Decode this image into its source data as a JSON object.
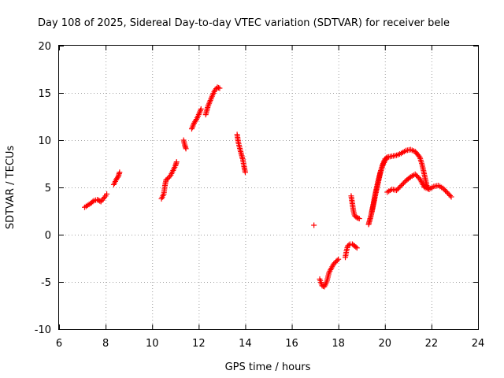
{
  "chart_data": {
    "type": "scatter",
    "title": "Day 108 of 2025, Sidereal Day-to-day VTEC variation (SDTVAR) for receiver bele",
    "xlabel": "GPS time / hours",
    "ylabel": "SDTVAR / TECUs",
    "xlim": [
      6,
      24
    ],
    "ylim": [
      -10,
      20
    ],
    "xticks": [
      6,
      8,
      10,
      12,
      14,
      16,
      18,
      20,
      22,
      24
    ],
    "yticks": [
      -10,
      -5,
      0,
      5,
      10,
      15,
      20
    ],
    "grid": true,
    "marker": "+",
    "color": "#ff0000",
    "segments": [
      {
        "name": "arc-1",
        "x": [
          7.1,
          7.35,
          7.5,
          7.65,
          7.8,
          7.9,
          8.0,
          8.05
        ],
        "y": [
          2.9,
          3.3,
          3.6,
          3.7,
          3.5,
          3.8,
          4.1,
          4.3
        ]
      },
      {
        "name": "arc-2",
        "x": [
          8.35,
          8.45,
          8.55,
          8.6
        ],
        "y": [
          5.3,
          5.8,
          6.2,
          6.6
        ]
      },
      {
        "name": "arc-3",
        "x": [
          10.4,
          10.5,
          10.55,
          10.6,
          10.7,
          10.8,
          10.9,
          11.0,
          11.05
        ],
        "y": [
          3.8,
          4.3,
          5.2,
          5.8,
          6.0,
          6.3,
          6.8,
          7.3,
          7.7
        ]
      },
      {
        "name": "arc-4",
        "x": [
          11.35,
          11.4,
          11.45
        ],
        "y": [
          10.0,
          9.5,
          9.1
        ]
      },
      {
        "name": "arc-5",
        "x": [
          11.7,
          11.8,
          11.9,
          12.0,
          12.1
        ],
        "y": [
          11.2,
          11.8,
          12.2,
          12.7,
          13.3
        ]
      },
      {
        "name": "arc-6",
        "x": [
          12.3,
          12.4,
          12.5,
          12.6,
          12.7,
          12.8,
          12.9
        ],
        "y": [
          12.7,
          13.6,
          14.2,
          14.8,
          15.3,
          15.6,
          15.5
        ]
      },
      {
        "name": "arc-7",
        "x": [
          13.65,
          13.7,
          13.8,
          13.9,
          13.95,
          14.0
        ],
        "y": [
          10.6,
          9.8,
          8.8,
          7.9,
          7.2,
          6.6
        ]
      },
      {
        "name": "isolated",
        "x": [
          16.95
        ],
        "y": [
          1.0
        ]
      },
      {
        "name": "arc-8",
        "x": [
          17.2,
          17.3,
          17.4,
          17.5,
          17.6,
          17.8,
          18.0
        ],
        "y": [
          -4.7,
          -5.4,
          -5.5,
          -5.0,
          -4.0,
          -3.1,
          -2.6
        ]
      },
      {
        "name": "arc-9",
        "x": [
          18.3,
          18.35,
          18.4,
          18.5,
          18.6,
          18.8
        ],
        "y": [
          -2.4,
          -1.7,
          -1.2,
          -1.0,
          -1.0,
          -1.4
        ]
      },
      {
        "name": "arc-10",
        "x": [
          18.55,
          18.6,
          18.65,
          18.7,
          18.8,
          18.9
        ],
        "y": [
          4.1,
          3.3,
          2.5,
          2.0,
          1.8,
          1.7
        ]
      },
      {
        "name": "arc-11",
        "x": [
          19.3,
          19.4,
          19.5,
          19.6,
          19.7,
          19.8,
          19.9,
          20.0,
          20.1,
          20.3,
          20.5,
          20.7,
          20.9,
          21.1,
          21.3,
          21.5,
          21.6,
          21.7,
          21.8,
          21.9
        ],
        "y": [
          1.1,
          2.0,
          3.1,
          4.3,
          5.4,
          6.5,
          7.4,
          8.0,
          8.2,
          8.3,
          8.4,
          8.6,
          8.9,
          9.0,
          8.8,
          8.2,
          7.4,
          6.3,
          5.2,
          4.8
        ]
      },
      {
        "name": "arc-12",
        "x": [
          19.3,
          19.4,
          19.5,
          19.6,
          19.7,
          19.8,
          19.9,
          20.0,
          20.1
        ],
        "y": [
          1.1,
          2.0,
          3.2,
          4.5,
          5.6,
          6.6,
          7.3,
          7.8,
          8.2
        ]
      },
      {
        "name": "arc-13",
        "x": [
          20.1,
          20.3,
          20.5,
          20.7,
          20.9,
          21.1,
          21.3,
          21.5,
          21.7,
          21.9,
          22.1,
          22.3,
          22.5,
          22.7,
          22.85
        ],
        "y": [
          4.5,
          4.8,
          4.7,
          5.2,
          5.7,
          6.1,
          6.4,
          5.9,
          5.0,
          4.8,
          5.1,
          5.2,
          4.9,
          4.4,
          4.0
        ]
      }
    ]
  }
}
